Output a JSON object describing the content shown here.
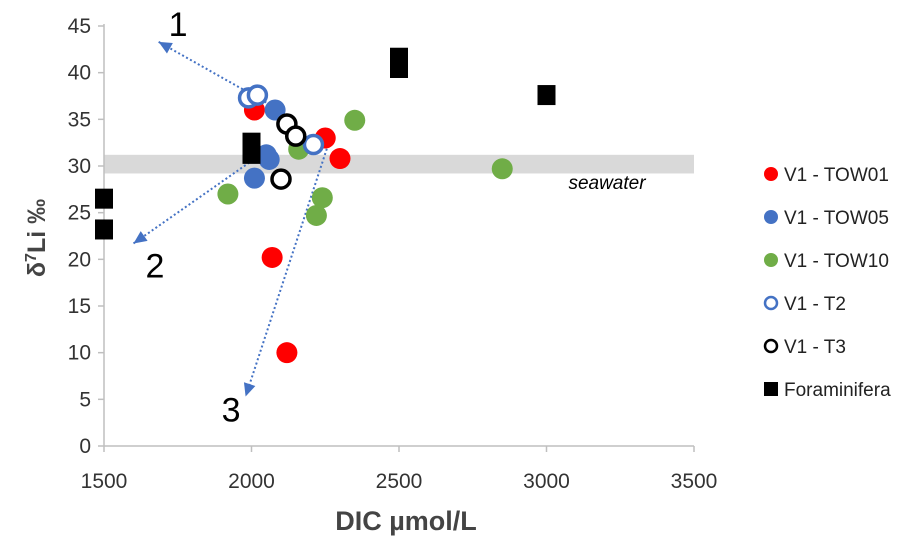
{
  "chart_data": {
    "type": "scatter",
    "xlabel": "DIC µmol/L",
    "ylabel_main": "δ",
    "ylabel_sup": "7",
    "ylabel_rest": "Li ‰",
    "xlim": [
      1500,
      3500
    ],
    "ylim": [
      0,
      45
    ],
    "xticks": [
      1500,
      2000,
      2500,
      3000,
      3500
    ],
    "yticks": [
      0,
      5,
      10,
      15,
      20,
      25,
      30,
      35,
      40,
      45
    ],
    "grid": false,
    "legend_position": "right",
    "seawater_band": {
      "label": "seawater",
      "y_range": [
        29.2,
        31.2
      ],
      "color": "#d9d9d9"
    },
    "series": [
      {
        "name": "V1 - TOW01",
        "marker": "filled-circle",
        "color": "#ff0000",
        "points": [
          [
            2010,
            36
          ],
          [
            2070,
            20.2
          ],
          [
            2120,
            10
          ],
          [
            2250,
            33
          ],
          [
            2300,
            30.8
          ]
        ]
      },
      {
        "name": "V1 - TOW05",
        "marker": "filled-circle",
        "color": "#4472c4",
        "points": [
          [
            2010,
            28.7
          ],
          [
            2060,
            30.7
          ],
          [
            2080,
            36
          ],
          [
            2050,
            31.2
          ]
        ]
      },
      {
        "name": "V1 - TOW10",
        "marker": "filled-circle",
        "color": "#70ad47",
        "points": [
          [
            1920,
            27
          ],
          [
            2160,
            31.8
          ],
          [
            2220,
            24.7
          ],
          [
            2240,
            26.6
          ],
          [
            2350,
            34.9
          ],
          [
            2850,
            29.7
          ]
        ]
      },
      {
        "name": "V1 - T2",
        "marker": "open-circle",
        "color": "#4472c4",
        "points": [
          [
            1990,
            37.3
          ],
          [
            2020,
            37.6
          ],
          [
            2210,
            32.3
          ]
        ]
      },
      {
        "name": "V1 - T3",
        "marker": "open-circle",
        "color": "#000000",
        "points": [
          [
            2120,
            34.5
          ],
          [
            2150,
            33.2
          ],
          [
            2100,
            28.6
          ]
        ]
      },
      {
        "name": "Foraminifera",
        "marker": "filled-square",
        "color": "#000000",
        "points": [
          [
            1500,
            26.5
          ],
          [
            1500,
            23.2
          ],
          [
            2000,
            32.5
          ],
          [
            2000,
            31.3
          ],
          [
            2500,
            41.6
          ],
          [
            2500,
            40.5
          ],
          [
            3000,
            37.6
          ]
        ]
      }
    ],
    "arrows": [
      {
        "label": "1",
        "from": [
          2050,
          36.8
        ],
        "to": [
          1685,
          43.3
        ],
        "color": "#4472c4",
        "style": "dotted"
      },
      {
        "label": "2",
        "from": [
          2030,
          31.2
        ],
        "to": [
          1600,
          21.7
        ],
        "color": "#4472c4",
        "style": "dotted"
      },
      {
        "label": "3",
        "from": [
          2260,
          32.3
        ],
        "to": [
          1980,
          5.3
        ],
        "color": "#4472c4",
        "style": "dotted"
      }
    ]
  }
}
